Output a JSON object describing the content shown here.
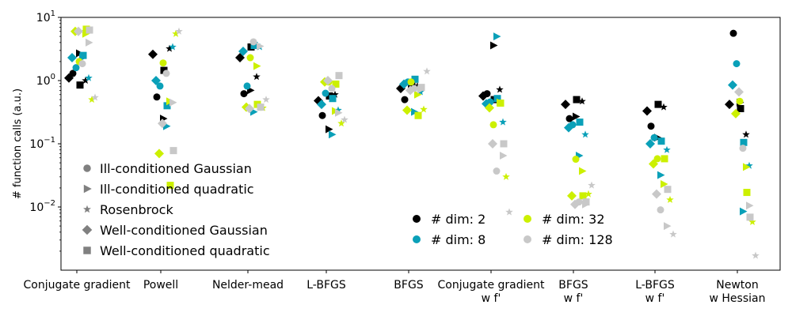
{
  "chart_data": {
    "type": "scatter",
    "title": "",
    "xlabel": "",
    "ylabel": "# function calls (a.u.)",
    "yscale": "log",
    "ylim": [
      0.001,
      10
    ],
    "y_ticks": [
      {
        "value": 0.01,
        "base": "10",
        "exp": "−2"
      },
      {
        "value": 0.1,
        "base": "10",
        "exp": "−1"
      },
      {
        "value": 1,
        "base": "10",
        "exp": "0"
      },
      {
        "value": 10,
        "base": "10",
        "exp": "1"
      }
    ],
    "categories": [
      [
        "Conjugate gradient"
      ],
      [
        "Powell"
      ],
      [
        "Nelder-mead"
      ],
      [
        "L-BFGS"
      ],
      [
        "BFGS"
      ],
      [
        "Conjugate gradient",
        "w f'"
      ],
      [
        "BFGS",
        "w f'"
      ],
      [
        "L-BFGS",
        "w f'"
      ],
      [
        "Newton",
        "w Hessian"
      ]
    ],
    "marker_legend": [
      {
        "label": "Ill-conditioned Gaussian",
        "marker": "circle"
      },
      {
        "label": "Ill-conditioned quadratic",
        "marker": "triangle-right"
      },
      {
        "label": "Rosenbrock",
        "marker": "star"
      },
      {
        "label": "Well-conditioned Gaussian",
        "marker": "diamond"
      },
      {
        "label": "Well-conditioned quadratic",
        "marker": "square"
      }
    ],
    "dim_legend": [
      {
        "label": "# dim: 2",
        "color": "#000000"
      },
      {
        "label": "# dim: 8",
        "color": "#0aa0b8"
      },
      {
        "label": "# dim: 32",
        "color": "#ccf000"
      },
      {
        "label": "# dim: 128",
        "color": "#c8c8c8"
      }
    ],
    "legend_position": "lower-left (markers), lower-center (dimensions)",
    "grid": false,
    "series": [
      {
        "dim": 2,
        "color": "#000000",
        "values": {
          "circle": [
            1.3,
            0.55,
            0.62,
            0.28,
            0.5,
            0.62,
            0.25,
            0.19,
            5.6
          ],
          "triangle-right": [
            2.7,
            0.25,
            0.7,
            0.17,
            0.85,
            3.6,
            0.27,
            0.125,
            0.45
          ],
          "star": [
            1.0,
            3.2,
            1.15,
            0.6,
            0.82,
            0.72,
            0.47,
            0.38,
            0.14
          ],
          "diamond": [
            1.1,
            2.6,
            2.3,
            0.48,
            0.75,
            0.57,
            0.42,
            0.33,
            0.42
          ],
          "square": [
            0.85,
            1.45,
            3.4,
            0.57,
            0.93,
            0.5,
            0.5,
            0.42,
            0.36
          ]
        }
      },
      {
        "dim": 8,
        "color": "#0aa0b8",
        "values": {
          "circle": [
            1.6,
            0.82,
            0.82,
            0.63,
            0.95,
            0.46,
            0.2,
            0.125,
            1.85
          ],
          "triangle-right": [
            2.3,
            0.19,
            0.32,
            0.14,
            0.32,
            5.0,
            0.065,
            0.032,
            0.0085
          ],
          "star": [
            1.1,
            3.4,
            3.4,
            0.34,
            0.66,
            0.22,
            0.14,
            0.08,
            0.045
          ],
          "diamond": [
            2.3,
            1.0,
            2.9,
            0.42,
            0.88,
            0.43,
            0.18,
            0.1,
            0.85
          ],
          "square": [
            2.5,
            0.4,
            3.6,
            0.52,
            1.05,
            0.52,
            0.22,
            0.11,
            0.105
          ]
        }
      },
      {
        "dim": 32,
        "color": "#ccf000",
        "values": {
          "circle": [
            2.0,
            1.9,
            2.3,
            0.95,
            0.95,
            0.2,
            0.057,
            0.058,
            0.47
          ],
          "triangle-right": [
            5.5,
            0.47,
            1.7,
            0.33,
            0.6,
            0.45,
            0.037,
            0.023,
            0.043
          ],
          "star": [
            0.5,
            5.5,
            0.37,
            0.21,
            0.35,
            0.03,
            0.016,
            0.013,
            0.0058
          ],
          "diamond": [
            6.0,
            0.07,
            0.38,
            0.95,
            0.34,
            0.37,
            0.015,
            0.048,
            0.3
          ],
          "square": [
            6.5,
            0.022,
            0.42,
            0.88,
            0.28,
            0.44,
            0.015,
            0.058,
            0.017
          ]
        }
      },
      {
        "dim": 128,
        "color": "#c8c8c8",
        "values": {
          "circle": [
            1.85,
            1.3,
            4.1,
            0.75,
            0.75,
            0.037,
            0.012,
            0.009,
            0.085
          ],
          "triangle-right": [
            4.0,
            0.45,
            3.5,
            0.31,
            0.72,
            0.065,
            0.011,
            0.005,
            0.0105
          ],
          "star": [
            0.54,
            6.0,
            0.5,
            0.24,
            1.4,
            0.0083,
            0.022,
            0.0037,
            0.0017
          ],
          "diamond": [
            6.0,
            0.21,
            0.36,
            1.0,
            0.7,
            0.1,
            0.011,
            0.016,
            0.66
          ],
          "square": [
            6.3,
            0.078,
            0.38,
            1.2,
            0.78,
            0.1,
            0.012,
            0.019,
            0.0069
          ]
        }
      }
    ]
  }
}
